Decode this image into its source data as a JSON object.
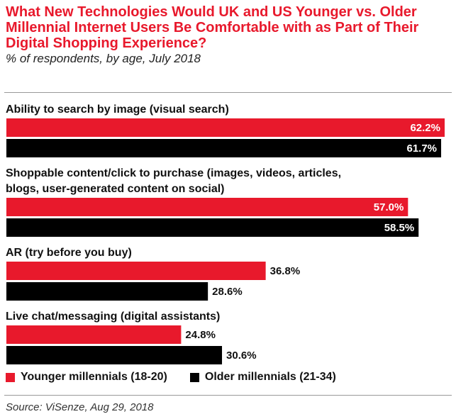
{
  "header": {
    "title": "What New Technologies Would UK and US Younger vs. Older Millennial Internet Users Be Comfortable with as Part of Their Digital Shopping Experience?",
    "subtitle": "% of respondents, by age, July 2018"
  },
  "footer": {
    "source": "Source: ViSenze, Aug 29, 2018"
  },
  "colors": {
    "younger": "#e8192c",
    "older": "#000000",
    "title": "#e8192c"
  },
  "chart_data": {
    "type": "bar",
    "orientation": "horizontal",
    "categories": [
      [
        "Ability to search by image (visual search)"
      ],
      [
        "Shoppable content/click to purchase (images, videos, articles,",
        "blogs, user-generated content on social)"
      ],
      [
        "AR (try before you buy)"
      ],
      [
        "Live chat/messaging (digital assistants)"
      ]
    ],
    "series": [
      {
        "name": "Younger millennials (18-20)",
        "values": [
          62.2,
          57.0,
          36.8,
          24.8
        ],
        "color": "#e8192c"
      },
      {
        "name": "Older millennials (21-34)",
        "values": [
          61.7,
          58.5,
          28.6,
          30.6
        ],
        "color": "#000000"
      }
    ],
    "value_labels": [
      [
        "62.2%",
        "57.0%",
        "36.8%",
        "24.8%"
      ],
      [
        "61.7%",
        "58.5%",
        "28.6%",
        "30.6%"
      ]
    ],
    "xlim": [
      0,
      62.2
    ],
    "legend_position": "bottom-left",
    "grid": false
  }
}
